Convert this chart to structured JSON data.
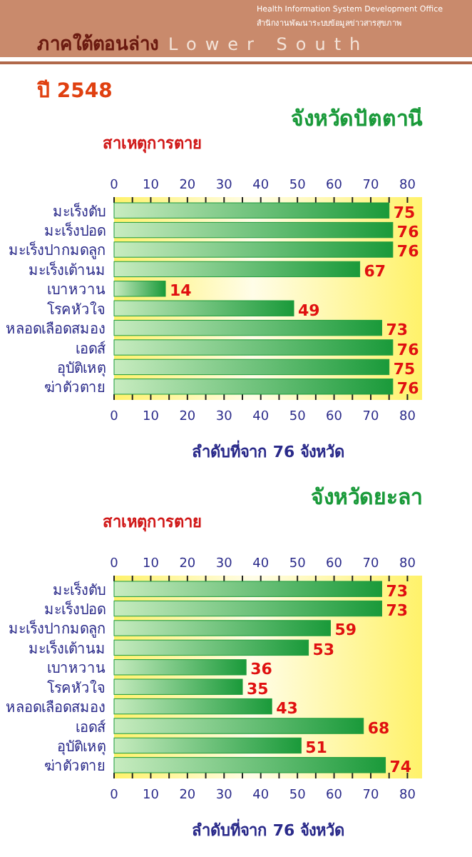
{
  "chart_data": [
    {
      "type": "bar",
      "orientation": "horizontal",
      "title": "จังหวัดปัตตานี",
      "ylabel": "สาเหตุการตาย",
      "xlabel": "ลำดับที่จาก 76 จังหวัด",
      "annotations": [
        "ภาคใต้ตอนล่าง",
        "Lower South",
        "Health Information System Development Office",
        "สำนักงานพัฒนาระบบข้อมูลข่าวสารสุขภาพ",
        "ปี 2548"
      ],
      "categories": [
        "มะเร็งตับ",
        "มะเร็งปอด",
        "มะเร็งปากมดลูก",
        "มะเร็งเต้านม",
        "เบาหวาน",
        "โรคหัวใจ",
        "หลอดเลือดสมอง",
        "เอดส์",
        "อุบัติเหตุ",
        "ฆ่าตัวตาย"
      ],
      "values": [
        75,
        76,
        76,
        67,
        14,
        49,
        73,
        76,
        75,
        76
      ],
      "color": "#1a9a3a",
      "data_labels": true,
      "grid": false,
      "xlim": [
        0,
        84
      ],
      "xticks": [
        0,
        {
          "value": 5,
          "label": null
        },
        10,
        {
          "value": 15,
          "label": null
        },
        20,
        {
          "value": 25,
          "label": null
        },
        30,
        {
          "value": 35,
          "label": null
        },
        40,
        {
          "value": 45,
          "label": null
        },
        50,
        {
          "value": 55,
          "label": null
        },
        60,
        {
          "value": 65,
          "label": null
        },
        70,
        {
          "value": 75,
          "label": null
        },
        80
      ],
      "x2lim": [
        0,
        84
      ],
      "x2ticks": [
        0,
        {
          "value": 5,
          "label": null
        },
        10,
        {
          "value": 15,
          "label": null
        },
        20,
        {
          "value": 25,
          "label": null
        },
        30,
        {
          "value": 35,
          "label": null
        },
        40,
        {
          "value": 45,
          "label": null
        },
        50,
        {
          "value": 55,
          "label": null
        },
        60,
        {
          "value": 65,
          "label": null
        },
        70,
        {
          "value": 75,
          "label": null
        },
        80
      ]
    },
    {
      "type": "bar",
      "orientation": "horizontal",
      "title": "จังหวัดยะลา",
      "ylabel": "สาเหตุการตาย",
      "xlabel": "ลำดับที่จาก 76 จังหวัด",
      "categories": [
        "มะเร็งตับ",
        "มะเร็งปอด",
        "มะเร็งปากมดลูก",
        "มะเร็งเต้านม",
        "เบาหวาน",
        "โรคหัวใจ",
        "หลอดเลือดสมอง",
        "เอดส์",
        "อุบัติเหตุ",
        "ฆ่าตัวตาย"
      ],
      "values": [
        73,
        73,
        59,
        53,
        36,
        35,
        43,
        68,
        51,
        74
      ],
      "color": "#1a9a3a",
      "data_labels": true,
      "grid": false,
      "xlim": [
        0,
        84
      ],
      "xticks": [
        0,
        {
          "value": 5,
          "label": null
        },
        10,
        {
          "value": 15,
          "label": null
        },
        20,
        {
          "value": 25,
          "label": null
        },
        30,
        {
          "value": 35,
          "label": null
        },
        40,
        {
          "value": 45,
          "label": null
        },
        50,
        {
          "value": 55,
          "label": null
        },
        60,
        {
          "value": 65,
          "label": null
        },
        70,
        {
          "value": 75,
          "label": null
        },
        80
      ],
      "x2lim": [
        0,
        84
      ],
      "x2ticks": [
        0,
        {
          "value": 5,
          "label": null
        },
        10,
        {
          "value": 15,
          "label": null
        },
        20,
        {
          "value": 25,
          "label": null
        },
        30,
        {
          "value": 35,
          "label": null
        },
        40,
        {
          "value": 45,
          "label": null
        },
        50,
        {
          "value": 55,
          "label": null
        },
        60,
        {
          "value": 65,
          "label": null
        },
        70,
        {
          "value": 75,
          "label": null
        },
        80
      ]
    }
  ]
}
